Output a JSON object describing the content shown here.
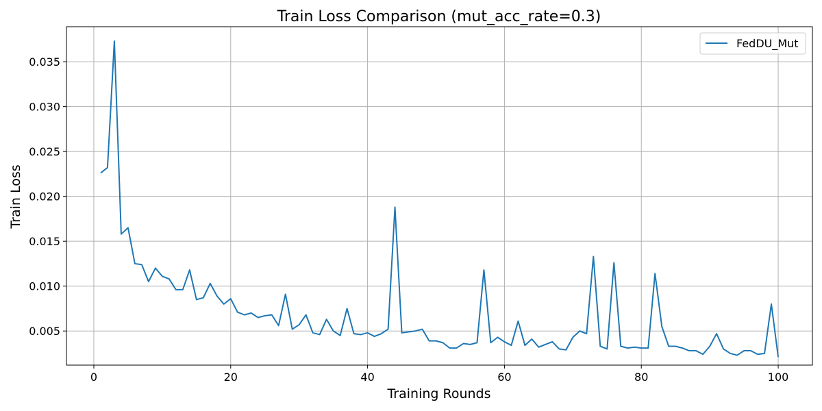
{
  "chart_data": {
    "type": "line",
    "title": "Train Loss Comparison (mut_acc_rate=0.3)",
    "xlabel": "Training Rounds",
    "ylabel": "Train Loss",
    "xlim": [
      -4,
      105
    ],
    "ylim": [
      0.0012,
      0.0389
    ],
    "xticks": [
      0,
      20,
      40,
      60,
      80,
      100
    ],
    "xtick_labels": [
      "0",
      "20",
      "40",
      "60",
      "80",
      "100"
    ],
    "yticks": [
      0.005,
      0.01,
      0.015,
      0.02,
      0.025,
      0.03,
      0.035
    ],
    "ytick_labels": [
      "0.005",
      "0.010",
      "0.015",
      "0.020",
      "0.025",
      "0.030",
      "0.035"
    ],
    "grid": true,
    "legend_position": "top-right",
    "series": [
      {
        "name": "FedDU_Mut",
        "color": "#1f77b4",
        "x": [
          1,
          2,
          3,
          4,
          5,
          6,
          7,
          8,
          9,
          10,
          11,
          12,
          13,
          14,
          15,
          16,
          17,
          18,
          19,
          20,
          21,
          22,
          23,
          24,
          25,
          26,
          27,
          28,
          29,
          30,
          31,
          32,
          33,
          34,
          35,
          36,
          37,
          38,
          39,
          40,
          41,
          42,
          43,
          44,
          45,
          46,
          47,
          48,
          49,
          50,
          51,
          52,
          53,
          54,
          55,
          56,
          57,
          58,
          59,
          60,
          61,
          62,
          63,
          64,
          65,
          66,
          67,
          68,
          69,
          70,
          71,
          72,
          73,
          74,
          75,
          76,
          77,
          78,
          79,
          80,
          81,
          82,
          83,
          84,
          85,
          86,
          87,
          88,
          89,
          90,
          91,
          92,
          93,
          94,
          95,
          96,
          97,
          98,
          99,
          100
        ],
        "y": [
          0.0226,
          0.0232,
          0.0373,
          0.0158,
          0.0165,
          0.0125,
          0.0124,
          0.0105,
          0.012,
          0.0111,
          0.0108,
          0.0096,
          0.0096,
          0.0118,
          0.0085,
          0.0087,
          0.0103,
          0.0089,
          0.008,
          0.0086,
          0.0071,
          0.0068,
          0.007,
          0.0065,
          0.0067,
          0.0068,
          0.0056,
          0.0091,
          0.0052,
          0.0057,
          0.0068,
          0.0048,
          0.0046,
          0.0063,
          0.005,
          0.0045,
          0.0075,
          0.0047,
          0.0046,
          0.0048,
          0.0044,
          0.0047,
          0.0052,
          0.0188,
          0.0048,
          0.0049,
          0.005,
          0.0052,
          0.0039,
          0.0039,
          0.0037,
          0.0031,
          0.0031,
          0.0036,
          0.0035,
          0.0037,
          0.0118,
          0.0037,
          0.0043,
          0.0038,
          0.0034,
          0.0061,
          0.0034,
          0.0041,
          0.0032,
          0.0035,
          0.0038,
          0.003,
          0.0029,
          0.0043,
          0.005,
          0.0047,
          0.0133,
          0.0033,
          0.003,
          0.0126,
          0.0033,
          0.0031,
          0.0032,
          0.0031,
          0.0031,
          0.0114,
          0.0055,
          0.0033,
          0.0033,
          0.0031,
          0.0028,
          0.0028,
          0.0024,
          0.0033,
          0.0047,
          0.003,
          0.0025,
          0.0023,
          0.0028,
          0.0028,
          0.0024,
          0.0025,
          0.008,
          0.0021
        ]
      }
    ]
  }
}
